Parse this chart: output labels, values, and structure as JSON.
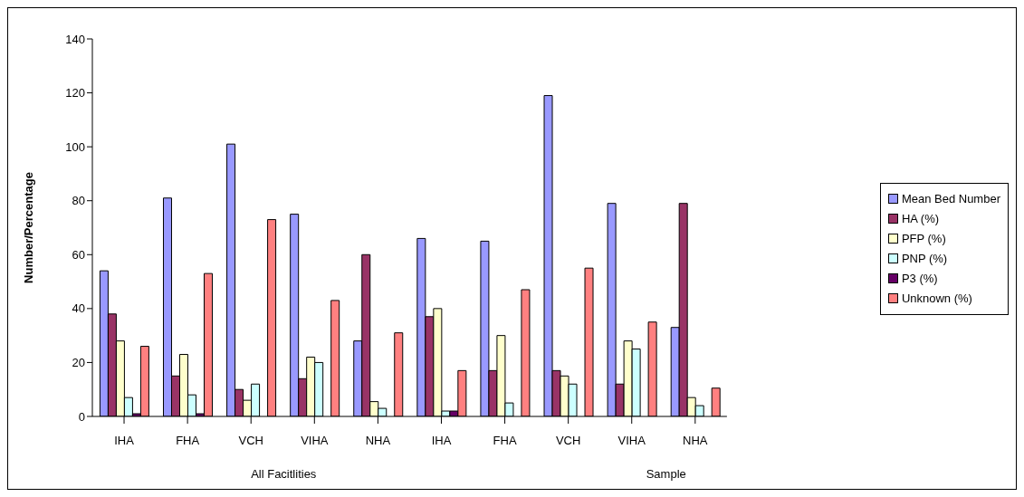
{
  "chart_data": {
    "type": "bar",
    "ylabel": "Number/Percentage",
    "categories": [
      "IHA",
      "FHA",
      "VCH",
      "VIHA",
      "NHA",
      "IHA",
      "FHA",
      "VCH",
      "VIHA",
      "NHA"
    ],
    "annotations": [
      "All Facitlities",
      "Sample"
    ],
    "series": [
      {
        "name": "Mean Bed Number",
        "color": "#9999ff",
        "values": [
          54,
          81,
          101,
          75,
          28,
          66,
          65,
          119,
          79,
          33
        ]
      },
      {
        "name": "HA (%)",
        "color": "#993366",
        "values": [
          38,
          15,
          10,
          14,
          60,
          37,
          17,
          17,
          12,
          79
        ]
      },
      {
        "name": "PFP (%)",
        "color": "#ffffcc",
        "values": [
          28,
          23,
          6,
          22,
          5.5,
          40,
          30,
          15,
          28,
          7
        ]
      },
      {
        "name": "PNP (%)",
        "color": "#ccffff",
        "values": [
          7,
          8,
          12,
          20,
          3,
          2,
          5,
          12,
          25,
          4
        ]
      },
      {
        "name": "P3 (%)",
        "color": "#660066",
        "values": [
          1,
          1,
          0,
          0,
          0,
          2,
          0,
          0,
          0,
          0
        ]
      },
      {
        "name": "Unknown (%)",
        "color": "#ff8080",
        "values": [
          26,
          53,
          73,
          43,
          31,
          17,
          47,
          55,
          35,
          10.5
        ]
      }
    ],
    "ylim": [
      0,
      140
    ],
    "yticks": [
      0,
      20,
      40,
      60,
      80,
      100,
      120,
      140
    ],
    "grid": false,
    "legend": "right"
  }
}
